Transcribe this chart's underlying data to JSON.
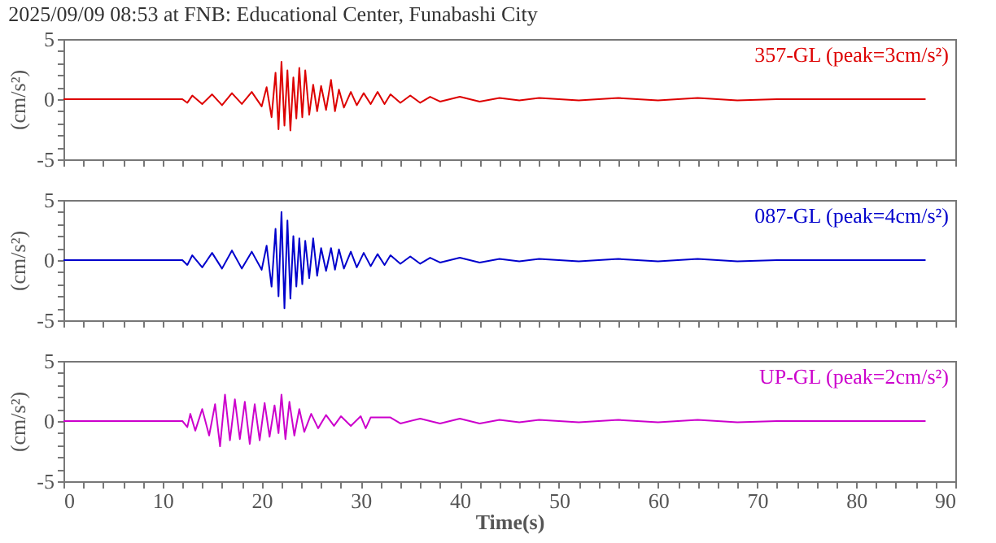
{
  "chart_data": [
    {
      "type": "line",
      "title": "2025/09/09 08:53 at FNB: Educational Center, Funabashi City",
      "ylabel": "(cm/s²)",
      "tick_labels": "y",
      "grid": false,
      "marker": "none",
      "line_style": "solid",
      "xlim": [
        0,
        90
      ],
      "xticks": [
        0,
        {
          "value": 2,
          "label": null
        },
        {
          "value": 4,
          "label": null
        },
        {
          "value": 6,
          "label": null
        },
        {
          "value": 8,
          "label": null
        },
        10,
        {
          "value": 12,
          "label": null
        },
        {
          "value": 14,
          "label": null
        },
        {
          "value": 16,
          "label": null
        },
        {
          "value": 18,
          "label": null
        },
        20,
        {
          "value": 22,
          "label": null
        },
        {
          "value": 24,
          "label": null
        },
        {
          "value": 26,
          "label": null
        },
        {
          "value": 28,
          "label": null
        },
        30,
        {
          "value": 32,
          "label": null
        },
        {
          "value": 34,
          "label": null
        },
        {
          "value": 36,
          "label": null
        },
        {
          "value": 38,
          "label": null
        },
        40,
        {
          "value": 42,
          "label": null
        },
        {
          "value": 44,
          "label": null
        },
        {
          "value": 46,
          "label": null
        },
        {
          "value": 48,
          "label": null
        },
        50,
        {
          "value": 52,
          "label": null
        },
        {
          "value": 54,
          "label": null
        },
        {
          "value": 56,
          "label": null
        },
        {
          "value": 58,
          "label": null
        },
        60,
        {
          "value": 62,
          "label": null
        },
        {
          "value": 64,
          "label": null
        },
        {
          "value": 66,
          "label": null
        },
        {
          "value": 68,
          "label": null
        },
        70,
        {
          "value": 72,
          "label": null
        },
        {
          "value": 74,
          "label": null
        },
        {
          "value": 76,
          "label": null
        },
        {
          "value": 78,
          "label": null
        },
        80,
        {
          "value": 82,
          "label": null
        },
        {
          "value": 84,
          "label": null
        },
        {
          "value": 86,
          "label": null
        },
        {
          "value": 88,
          "label": null
        },
        90
      ],
      "ylim": [
        -5,
        5
      ],
      "yticks": [
        -5,
        {
          "value": -4,
          "label": null
        },
        {
          "value": -3,
          "label": null
        },
        {
          "value": -2,
          "label": null
        },
        {
          "value": -1,
          "label": null
        },
        0,
        {
          "value": 1,
          "label": null
        },
        {
          "value": 2,
          "label": null
        },
        {
          "value": 3,
          "label": null
        },
        {
          "value": 4,
          "label": null
        },
        5
      ],
      "series": [
        {
          "name": "357-GL (peak=3cm/s²)",
          "color": "#dd0000",
          "x": [
            0,
            4,
            8,
            12,
            12.5,
            13,
            14,
            15,
            16,
            17,
            18,
            19,
            20,
            20.5,
            21,
            21.4,
            21.7,
            22,
            22.3,
            22.6,
            22.9,
            23.2,
            23.5,
            23.8,
            24.1,
            24.4,
            24.8,
            25.2,
            25.6,
            26,
            26.5,
            27,
            27.4,
            27.8,
            28.3,
            29,
            29.6,
            30.3,
            31,
            31.7,
            32.4,
            33,
            34,
            35,
            36,
            37,
            38,
            40,
            42,
            44,
            46,
            48,
            52,
            56,
            60,
            64,
            68,
            72,
            76,
            80,
            84,
            87
          ],
          "values": [
            0,
            0,
            0,
            0,
            -0.3,
            0.3,
            -0.4,
            0.4,
            -0.5,
            0.5,
            -0.4,
            0.6,
            -0.6,
            1.0,
            -1.5,
            2.2,
            -2.5,
            3.1,
            -2.2,
            2.4,
            -2.6,
            1.8,
            -1.6,
            2.6,
            -1.5,
            2.4,
            -1.3,
            1.2,
            -1.0,
            1.1,
            -0.9,
            1.6,
            -1.0,
            0.8,
            -0.7,
            0.6,
            -0.5,
            0.5,
            -0.4,
            0.6,
            -0.4,
            0.4,
            -0.3,
            0.3,
            -0.3,
            0.2,
            -0.2,
            0.2,
            -0.2,
            0.1,
            -0.1,
            0.1,
            -0.1,
            0.1,
            -0.1,
            0.1,
            -0.1,
            0,
            0,
            0,
            0,
            0
          ]
        }
      ]
    },
    {
      "type": "line",
      "ylabel": "(cm/s²)",
      "tick_labels": "y",
      "grid": false,
      "marker": "none",
      "line_style": "solid",
      "xlim": [
        0,
        90
      ],
      "xticks": [
        0,
        {
          "value": 2,
          "label": null
        },
        {
          "value": 4,
          "label": null
        },
        {
          "value": 6,
          "label": null
        },
        {
          "value": 8,
          "label": null
        },
        10,
        {
          "value": 12,
          "label": null
        },
        {
          "value": 14,
          "label": null
        },
        {
          "value": 16,
          "label": null
        },
        {
          "value": 18,
          "label": null
        },
        20,
        {
          "value": 22,
          "label": null
        },
        {
          "value": 24,
          "label": null
        },
        {
          "value": 26,
          "label": null
        },
        {
          "value": 28,
          "label": null
        },
        30,
        {
          "value": 32,
          "label": null
        },
        {
          "value": 34,
          "label": null
        },
        {
          "value": 36,
          "label": null
        },
        {
          "value": 38,
          "label": null
        },
        40,
        {
          "value": 42,
          "label": null
        },
        {
          "value": 44,
          "label": null
        },
        {
          "value": 46,
          "label": null
        },
        {
          "value": 48,
          "label": null
        },
        50,
        {
          "value": 52,
          "label": null
        },
        {
          "value": 54,
          "label": null
        },
        {
          "value": 56,
          "label": null
        },
        {
          "value": 58,
          "label": null
        },
        60,
        {
          "value": 62,
          "label": null
        },
        {
          "value": 64,
          "label": null
        },
        {
          "value": 66,
          "label": null
        },
        {
          "value": 68,
          "label": null
        },
        70,
        {
          "value": 72,
          "label": null
        },
        {
          "value": 74,
          "label": null
        },
        {
          "value": 76,
          "label": null
        },
        {
          "value": 78,
          "label": null
        },
        80,
        {
          "value": 82,
          "label": null
        },
        {
          "value": 84,
          "label": null
        },
        {
          "value": 86,
          "label": null
        },
        {
          "value": 88,
          "label": null
        },
        90
      ],
      "ylim": [
        -5,
        5
      ],
      "yticks": [
        -5,
        {
          "value": -4,
          "label": null
        },
        {
          "value": -3,
          "label": null
        },
        {
          "value": -2,
          "label": null
        },
        {
          "value": -1,
          "label": null
        },
        0,
        {
          "value": 1,
          "label": null
        },
        {
          "value": 2,
          "label": null
        },
        {
          "value": 3,
          "label": null
        },
        {
          "value": 4,
          "label": null
        },
        5
      ],
      "series": [
        {
          "name": "087-GL (peak=4cm/s²)",
          "color": "#0000cc",
          "x": [
            0,
            4,
            8,
            12,
            12.5,
            13,
            14,
            15,
            16,
            17,
            18,
            19,
            20,
            20.5,
            21,
            21.4,
            21.7,
            22,
            22.3,
            22.6,
            22.9,
            23.2,
            23.5,
            23.8,
            24.1,
            24.4,
            24.8,
            25.2,
            25.6,
            26,
            26.5,
            27,
            27.4,
            27.8,
            28.3,
            29,
            29.6,
            30.3,
            31,
            31.7,
            32.4,
            33,
            34,
            35,
            36,
            37,
            38,
            40,
            42,
            44,
            46,
            48,
            52,
            56,
            60,
            64,
            68,
            72,
            76,
            80,
            84,
            87
          ],
          "values": [
            0,
            0,
            0,
            0,
            -0.4,
            0.4,
            -0.6,
            0.6,
            -0.7,
            0.8,
            -0.7,
            0.7,
            -0.8,
            1.2,
            -2.2,
            2.6,
            -3.0,
            4.0,
            -4.0,
            3.3,
            -3.2,
            2.0,
            -2.2,
            1.8,
            -2.0,
            1.6,
            -1.5,
            1.8,
            -1.3,
            1.0,
            -0.9,
            1.0,
            -0.8,
            0.9,
            -0.7,
            0.7,
            -0.6,
            0.6,
            -0.5,
            0.5,
            -0.4,
            0.4,
            -0.3,
            0.3,
            -0.3,
            0.2,
            -0.2,
            0.2,
            -0.2,
            0.1,
            -0.1,
            0.1,
            -0.1,
            0.1,
            -0.1,
            0.1,
            -0.1,
            0,
            0,
            0,
            0,
            0
          ]
        }
      ]
    },
    {
      "type": "line",
      "ylabel": "(cm/s²)",
      "xlabel": "Time(s)",
      "grid": false,
      "marker": "none",
      "line_style": "solid",
      "xlim": [
        0,
        90
      ],
      "xticks": [
        0,
        {
          "value": 2,
          "label": null
        },
        {
          "value": 4,
          "label": null
        },
        {
          "value": 6,
          "label": null
        },
        {
          "value": 8,
          "label": null
        },
        10,
        {
          "value": 12,
          "label": null
        },
        {
          "value": 14,
          "label": null
        },
        {
          "value": 16,
          "label": null
        },
        {
          "value": 18,
          "label": null
        },
        20,
        {
          "value": 22,
          "label": null
        },
        {
          "value": 24,
          "label": null
        },
        {
          "value": 26,
          "label": null
        },
        {
          "value": 28,
          "label": null
        },
        30,
        {
          "value": 32,
          "label": null
        },
        {
          "value": 34,
          "label": null
        },
        {
          "value": 36,
          "label": null
        },
        {
          "value": 38,
          "label": null
        },
        40,
        {
          "value": 42,
          "label": null
        },
        {
          "value": 44,
          "label": null
        },
        {
          "value": 46,
          "label": null
        },
        {
          "value": 48,
          "label": null
        },
        50,
        {
          "value": 52,
          "label": null
        },
        {
          "value": 54,
          "label": null
        },
        {
          "value": 56,
          "label": null
        },
        {
          "value": 58,
          "label": null
        },
        60,
        {
          "value": 62,
          "label": null
        },
        {
          "value": 64,
          "label": null
        },
        {
          "value": 66,
          "label": null
        },
        {
          "value": 68,
          "label": null
        },
        70,
        {
          "value": 72,
          "label": null
        },
        {
          "value": 74,
          "label": null
        },
        {
          "value": 76,
          "label": null
        },
        {
          "value": 78,
          "label": null
        },
        80,
        {
          "value": 82,
          "label": null
        },
        {
          "value": 84,
          "label": null
        },
        {
          "value": 86,
          "label": null
        },
        {
          "value": 88,
          "label": null
        },
        90
      ],
      "ylim": [
        -5,
        5
      ],
      "yticks": [
        -5,
        {
          "value": -4,
          "label": null
        },
        {
          "value": -3,
          "label": null
        },
        {
          "value": -2,
          "label": null
        },
        {
          "value": -1,
          "label": null
        },
        0,
        {
          "value": 1,
          "label": null
        },
        {
          "value": 2,
          "label": null
        },
        {
          "value": 3,
          "label": null
        },
        {
          "value": 4,
          "label": null
        },
        5
      ],
      "series": [
        {
          "name": "UP-GL (peak=2cm/s²)",
          "color": "#cc00cc",
          "x": [
            0,
            4,
            8,
            12,
            12.5,
            12.8,
            13.3,
            14,
            14.7,
            15.3,
            15.8,
            16.3,
            16.8,
            17.3,
            17.8,
            18.3,
            18.8,
            19.3,
            19.8,
            20.3,
            20.8,
            21.3,
            21.7,
            22,
            22.4,
            22.8,
            23.3,
            23.8,
            24.3,
            25,
            25.7,
            26.5,
            27.3,
            28,
            29,
            30,
            30.5,
            31,
            33,
            34,
            36,
            38,
            40,
            42,
            44,
            46,
            48,
            52,
            56,
            60,
            64,
            68,
            72,
            76,
            80,
            84,
            87
          ],
          "values": [
            0,
            0,
            0,
            0,
            -0.5,
            0.6,
            -0.8,
            1.0,
            -1.2,
            1.4,
            -2.1,
            2.2,
            -1.6,
            1.8,
            -1.5,
            1.6,
            -1.9,
            1.4,
            -1.6,
            1.5,
            -1.3,
            1.3,
            -1.0,
            2.2,
            -1.5,
            1.6,
            -1.2,
            1.0,
            -0.9,
            0.6,
            -0.6,
            0.5,
            -0.4,
            0.4,
            -0.4,
            0.4,
            -0.6,
            0.3,
            0.3,
            -0.2,
            0.2,
            -0.2,
            0.2,
            -0.2,
            0.1,
            -0.1,
            0.1,
            -0.1,
            0.1,
            -0.1,
            0.1,
            -0.1,
            0,
            0,
            0,
            0,
            0
          ]
        }
      ]
    }
  ]
}
